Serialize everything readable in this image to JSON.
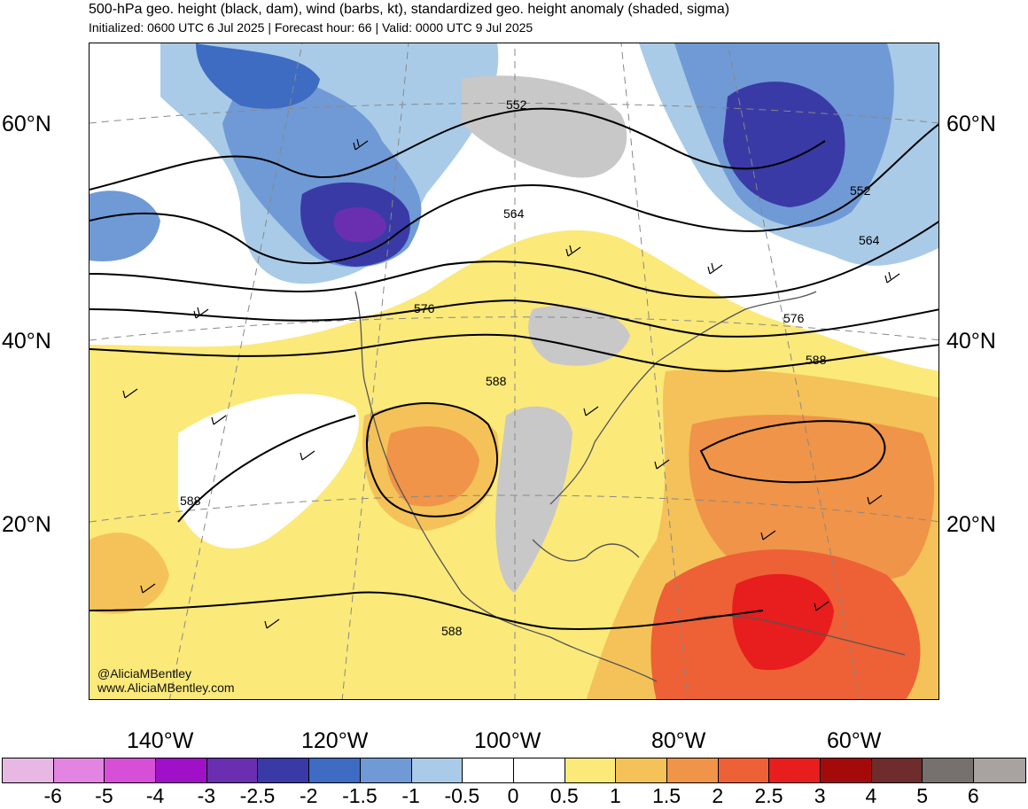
{
  "header": {
    "title": "500-hPa geo. height (black, dam), wind (barbs, kt), standardized geo. height anomaly (shaded, sigma)",
    "subtitle": "Initialized: 0600 UTC 6 Jul 2025 | Forecast hour: 66 | Valid: 0000 UTC 9 Jul 2025"
  },
  "map": {
    "latitude_labels": [
      "60°N",
      "40°N",
      "20°N"
    ],
    "longitude_labels": [
      "140°W",
      "120°W",
      "100°W",
      "80°W",
      "60°W"
    ],
    "contour_labels": [
      "552",
      "564",
      "576",
      "588",
      "552",
      "564",
      "576",
      "588",
      "588",
      "588"
    ],
    "credit": {
      "handle": "@AliciaMBentley",
      "website": "www.AliciaMBentley.com"
    }
  },
  "colorbar": {
    "labels": [
      "-6",
      "-5",
      "-4",
      "-3",
      "-2.5",
      "-2",
      "-1.5",
      "-1",
      "-0.5",
      "0",
      "0.5",
      "1",
      "1.5",
      "2",
      "2.5",
      "3",
      "4",
      "5",
      "6"
    ],
    "colors": [
      "#e8b8e4",
      "#e383e2",
      "#d64fd6",
      "#a010c8",
      "#6a2fb0",
      "#3a3aa6",
      "#3d6cc2",
      "#6f9ad6",
      "#a9cbe8",
      "#ffffff",
      "#ffffff",
      "#fbe97a",
      "#f4c258",
      "#ef9448",
      "#ee6035",
      "#e81d1d",
      "#a50a0a",
      "#6e2c2c",
      "#76706e",
      "#a8a2a0"
    ]
  }
}
